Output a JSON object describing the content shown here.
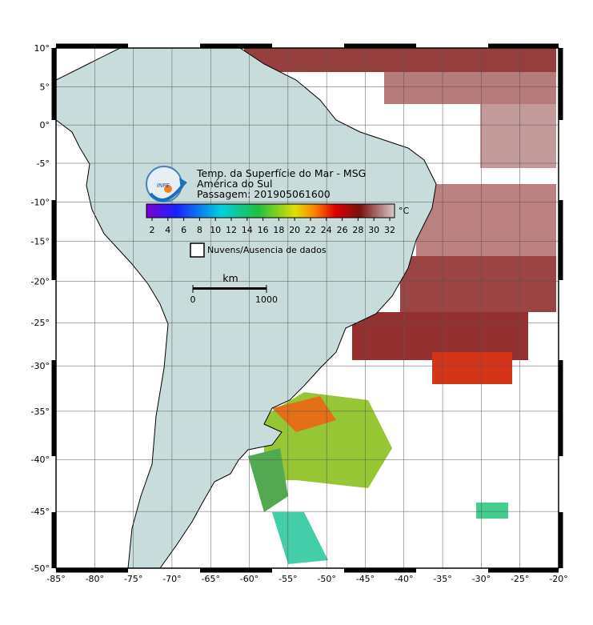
{
  "map": {
    "lat_ticks": [
      {
        "value": 10,
        "label": "10°"
      },
      {
        "value": 5,
        "label": "5°"
      },
      {
        "value": 0,
        "label": "0°"
      },
      {
        "value": -5,
        "label": "-5°"
      },
      {
        "value": -10,
        "label": "-10°"
      },
      {
        "value": -15,
        "label": "-15°"
      },
      {
        "value": -20,
        "label": "-20°"
      },
      {
        "value": -25,
        "label": "-25°"
      },
      {
        "value": -30,
        "label": "-30°"
      },
      {
        "value": -35,
        "label": "-35°"
      },
      {
        "value": -40,
        "label": "-40°"
      },
      {
        "value": -45,
        "label": "-45°"
      },
      {
        "value": -50,
        "label": "-50°"
      }
    ],
    "lon_ticks": [
      {
        "value": -85,
        "label": "-85°"
      },
      {
        "value": -80,
        "label": "-80°"
      },
      {
        "value": -75,
        "label": "-75°"
      },
      {
        "value": -70,
        "label": "-70°"
      },
      {
        "value": -65,
        "label": "-65°"
      },
      {
        "value": -60,
        "label": "-60°"
      },
      {
        "value": -55,
        "label": "-55°"
      },
      {
        "value": -50,
        "label": "-50°"
      },
      {
        "value": -45,
        "label": "-45°"
      },
      {
        "value": -40,
        "label": "-40°"
      },
      {
        "value": -35,
        "label": "-35°"
      },
      {
        "value": -30,
        "label": "-30°"
      },
      {
        "value": -25,
        "label": "-25°"
      },
      {
        "value": -20,
        "label": "-20°"
      }
    ]
  },
  "title": {
    "logo": "INPE",
    "lines": [
      "Temp. da Superfície do Mar - MSG",
      "América do Sul",
      "Passagem: 201905061600"
    ]
  },
  "colorbar": {
    "unit": "°C",
    "ticks": [
      2,
      4,
      6,
      8,
      10,
      12,
      14,
      16,
      18,
      20,
      22,
      24,
      26,
      28,
      30,
      32
    ]
  },
  "legend": {
    "label": "Nuvens/Ausencia de dados"
  },
  "scale_bar": {
    "unit": "km",
    "ticks": [
      0,
      1000
    ]
  }
}
